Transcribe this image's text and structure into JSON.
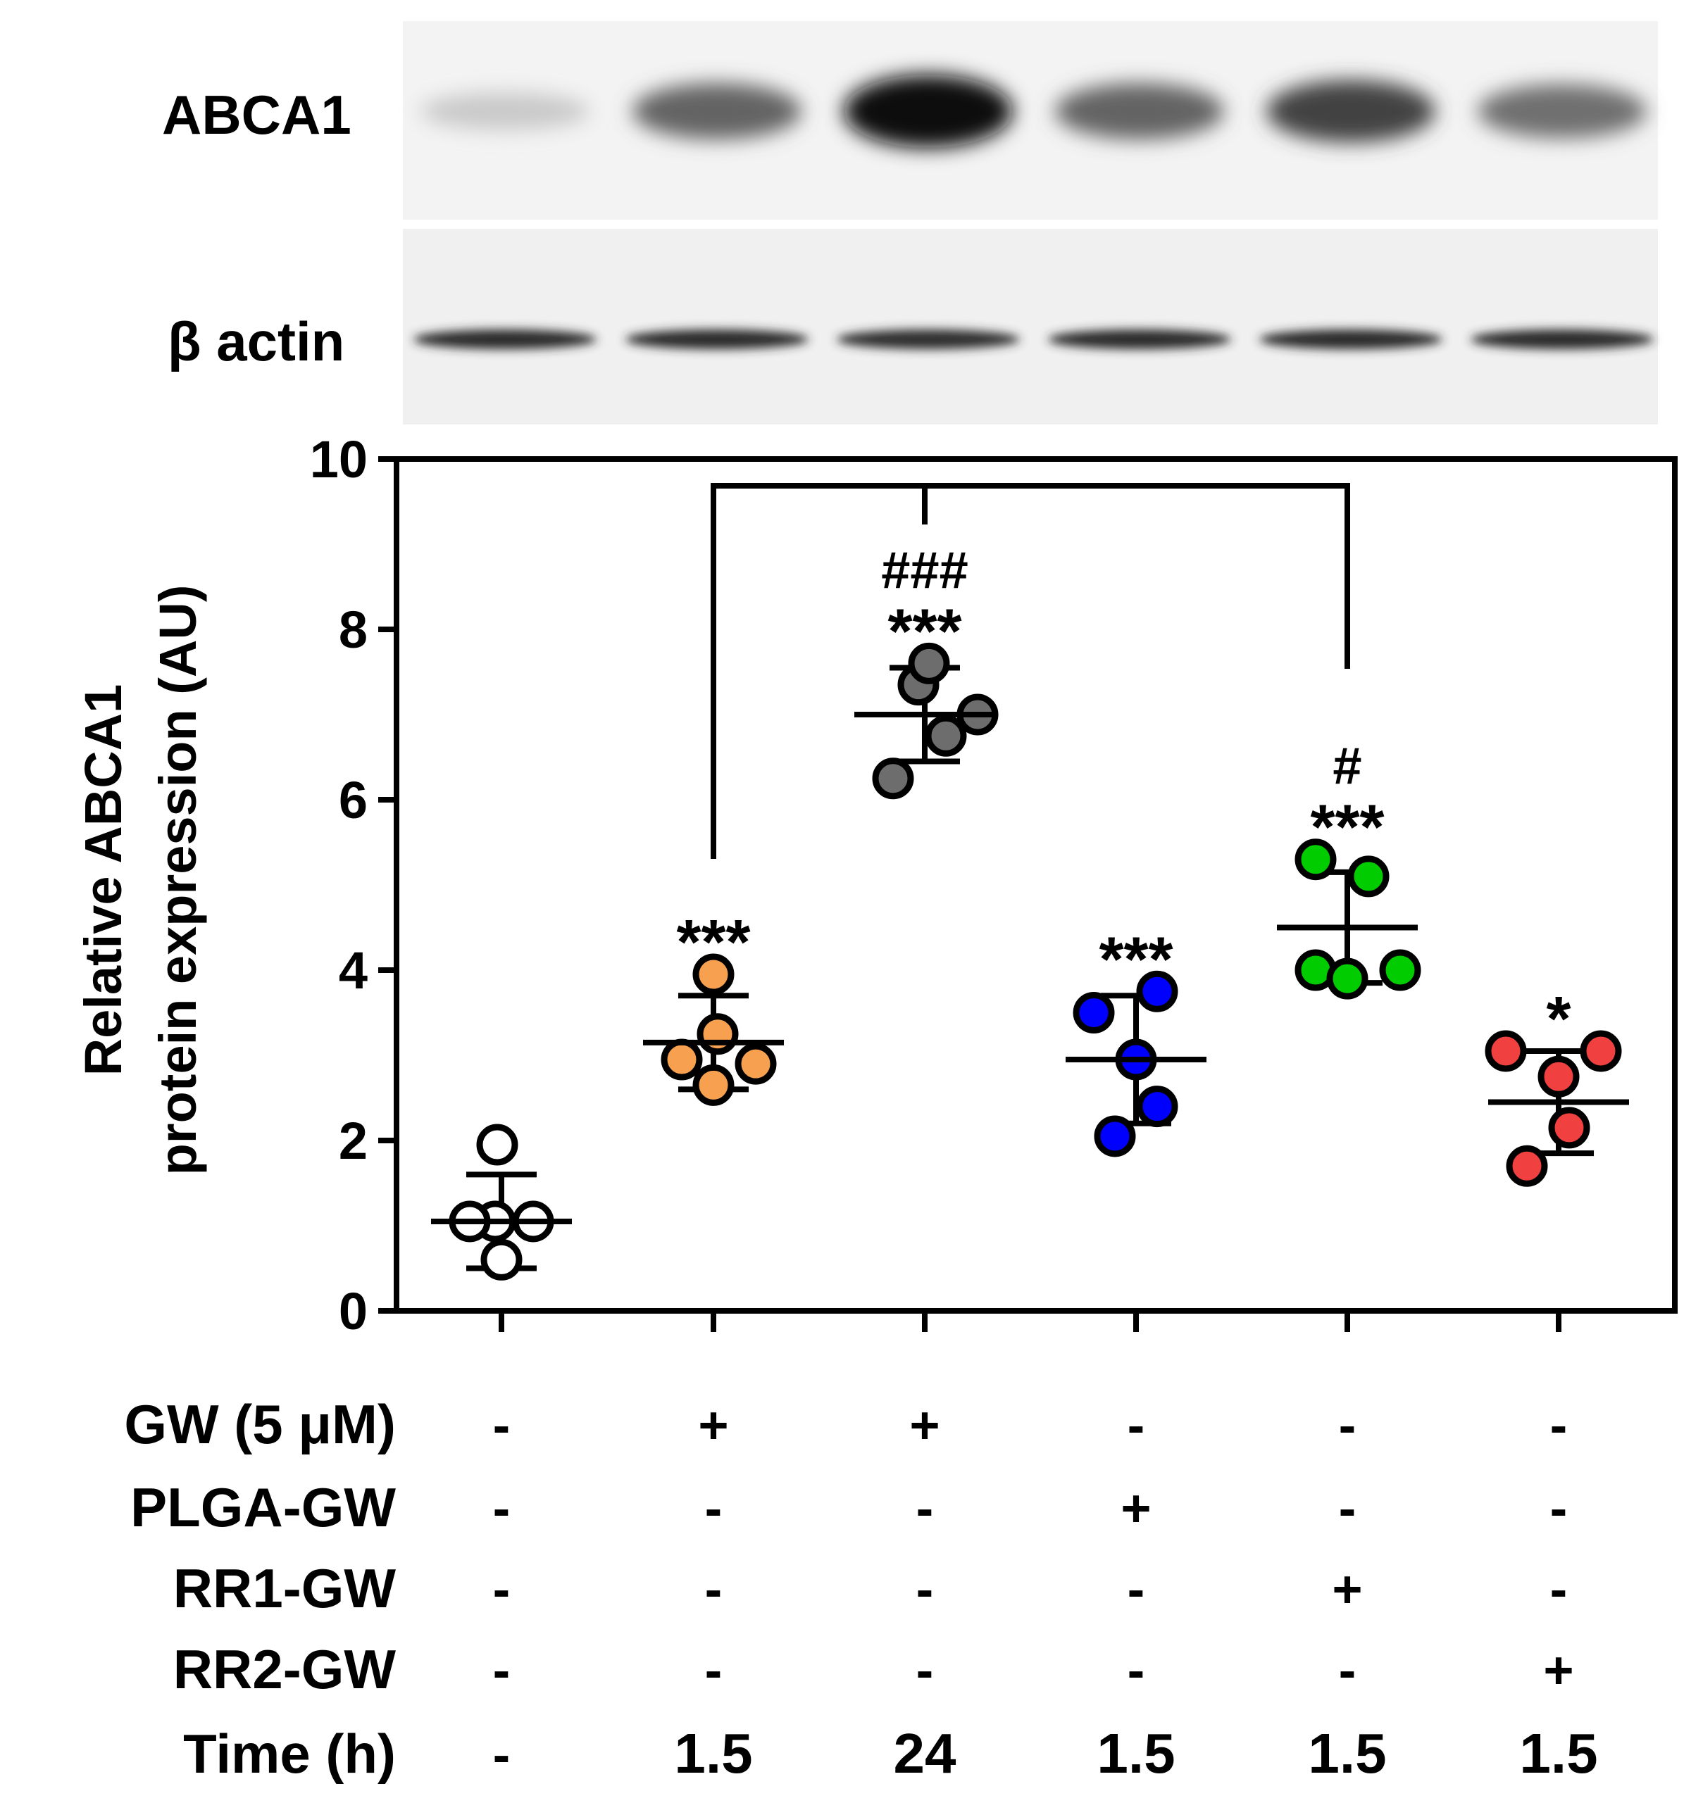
{
  "blot": {
    "abca1_label": "ABCA1",
    "actin_label": "β actin",
    "abca1_band_intensity": [
      0.15,
      0.6,
      1.0,
      0.6,
      0.75,
      0.55
    ],
    "actin_band_intensity": [
      0.9,
      0.9,
      0.88,
      0.9,
      0.9,
      0.9
    ]
  },
  "chart_data": {
    "type": "scatter",
    "ylabel_line1": "Relative ABCA1",
    "ylabel_line2": "protein expression  (AU)",
    "ylim": [
      0,
      10
    ],
    "yticks": [
      "0",
      "2",
      "4",
      "6",
      "8",
      "10"
    ],
    "groups": [
      {
        "color": "#ffffff",
        "mean": 1.05,
        "sd_low": 0.5,
        "sd_high": 1.6,
        "sig": "",
        "hash": "",
        "points": [
          [
            -0.02,
            1.95
          ],
          [
            -0.03,
            1.05
          ],
          [
            0.15,
            1.05
          ],
          [
            0.0,
            0.6
          ],
          [
            -0.15,
            1.05
          ]
        ]
      },
      {
        "color": "#f7a04f",
        "mean": 3.15,
        "sd_low": 2.6,
        "sd_high": 3.7,
        "sig": "***",
        "hash": "",
        "points": [
          [
            0.0,
            3.95
          ],
          [
            0.02,
            3.25
          ],
          [
            -0.15,
            2.95
          ],
          [
            0.2,
            2.9
          ],
          [
            0.0,
            2.65
          ]
        ]
      },
      {
        "color": "#6d6d6d",
        "mean": 7.0,
        "sd_low": 6.45,
        "sd_high": 7.55,
        "sig": "***",
        "hash": "###",
        "points": [
          [
            -0.03,
            7.35
          ],
          [
            0.02,
            7.6
          ],
          [
            0.25,
            7.0
          ],
          [
            0.1,
            6.75
          ],
          [
            -0.15,
            6.25
          ]
        ]
      },
      {
        "color": "#0000ff",
        "mean": 2.95,
        "sd_low": 2.2,
        "sd_high": 3.7,
        "sig": "***",
        "hash": "",
        "points": [
          [
            0.1,
            3.75
          ],
          [
            -0.2,
            3.5
          ],
          [
            0.0,
            2.95
          ],
          [
            0.1,
            2.4
          ],
          [
            -0.1,
            2.05
          ]
        ]
      },
      {
        "color": "#00cc00",
        "mean": 4.5,
        "sd_low": 3.85,
        "sd_high": 5.15,
        "sig": "***",
        "hash": "#",
        "points": [
          [
            -0.15,
            5.3
          ],
          [
            0.1,
            5.1
          ],
          [
            -0.15,
            4.0
          ],
          [
            0.25,
            4.0
          ],
          [
            0.0,
            3.9
          ]
        ]
      },
      {
        "color": "#f04040",
        "mean": 2.45,
        "sd_low": 1.85,
        "sd_high": 3.05,
        "sig": "*",
        "hash": "",
        "points": [
          [
            -0.25,
            3.05
          ],
          [
            0.2,
            3.05
          ],
          [
            0.0,
            2.75
          ],
          [
            0.05,
            2.15
          ],
          [
            -0.15,
            1.7
          ]
        ]
      }
    ],
    "bracket": {
      "from": 1,
      "to": 4,
      "mid": 2
    }
  },
  "table": {
    "row_labels": [
      "GW (5 μM)",
      "PLGA-GW",
      "RR1-GW",
      "RR2-GW",
      "Time (h)"
    ],
    "rows": [
      [
        "-",
        "+",
        "+",
        "-",
        "-",
        "-"
      ],
      [
        "-",
        "-",
        "-",
        "+",
        "-",
        "-"
      ],
      [
        "-",
        "-",
        "-",
        "-",
        "+",
        "-"
      ],
      [
        "-",
        "-",
        "-",
        "-",
        "-",
        "+"
      ],
      [
        "-",
        "1.5",
        "24",
        "1.5",
        "1.5",
        "1.5"
      ]
    ]
  }
}
